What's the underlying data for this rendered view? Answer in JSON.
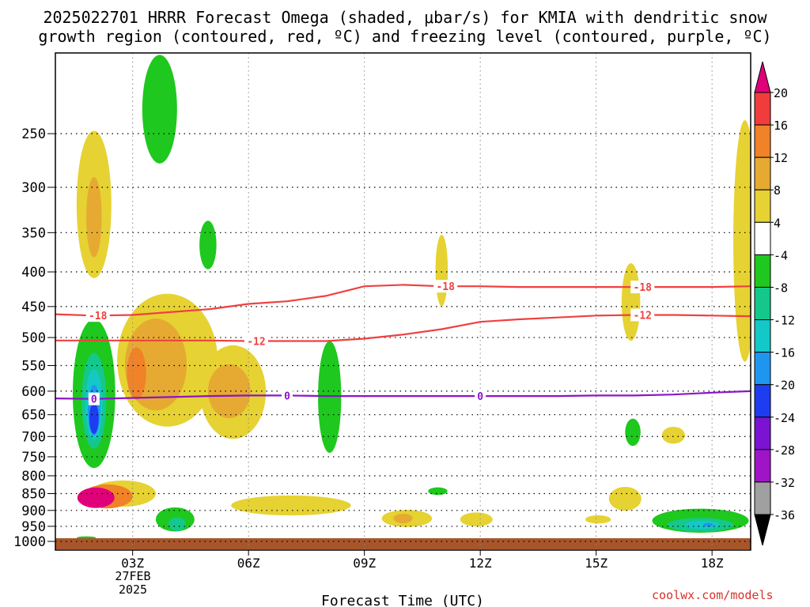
{
  "chart_data": {
    "type": "heatmap",
    "title_line1": "2025022701 HRRR Forecast Omega (shaded, μbar/s) for KMIA with dendritic snow",
    "title_line2": "growth region (contoured, red, ºC) and freezing level (contoured, purple, ºC)",
    "xlabel": "Forecast Time (UTC)",
    "x_ticks": [
      "03Z",
      "06Z",
      "09Z",
      "12Z",
      "15Z",
      "18Z"
    ],
    "x_tick_hours": [
      3,
      6,
      9,
      12,
      15,
      18
    ],
    "x_range_hours": [
      1,
      19
    ],
    "date_label_line1": "27FEB",
    "date_label_line2": "2025",
    "y_ticks": [
      250,
      300,
      350,
      400,
      450,
      500,
      550,
      600,
      650,
      700,
      750,
      800,
      850,
      900,
      950,
      1000
    ],
    "y_tick_labels": [
      "250",
      "300",
      "350",
      "400",
      "450",
      "500",
      "550",
      "600",
      "650",
      "700",
      "750",
      "800",
      "850",
      "900",
      "950",
      "1000"
    ],
    "y_range_hPa": [
      190,
      1030
    ],
    "ylabel": "",
    "grid": true,
    "colorbar": {
      "labels": [
        "20",
        "16",
        "12",
        "8",
        "4",
        "-4",
        "-8",
        "-12",
        "-16",
        "-20",
        "-24",
        "-28",
        "-32",
        "-36"
      ],
      "colors": [
        "#e0007a",
        "#f03c3c",
        "#f08228",
        "#e6aa32",
        "#e6d232",
        "#ffffff",
        "#1ec81e",
        "#14c88c",
        "#14c8c8",
        "#1e96f0",
        "#1e3cf0",
        "#7a14d2",
        "#a014c8",
        "#a0a0a0",
        "#000000"
      ]
    },
    "omega_regions": [
      {
        "h": 2.0,
        "p": 318,
        "dh": 0.45,
        "dp": 78,
        "color": "#e6d232"
      },
      {
        "h": 2.0,
        "p": 332,
        "dh": 0.2,
        "dp": 45,
        "color": "#e6aa32"
      },
      {
        "h": 3.9,
        "p": 540,
        "dh": 1.3,
        "dp": 120,
        "color": "#e6d232"
      },
      {
        "h": 3.6,
        "p": 548,
        "dh": 0.8,
        "dp": 85,
        "color": "#e6aa32"
      },
      {
        "h": 3.1,
        "p": 565,
        "dh": 0.25,
        "dp": 50,
        "color": "#f08228"
      },
      {
        "h": 5.6,
        "p": 602,
        "dh": 0.85,
        "dp": 95,
        "color": "#e6d232"
      },
      {
        "h": 5.5,
        "p": 600,
        "dh": 0.55,
        "dp": 55,
        "color": "#e6aa32"
      },
      {
        "h": 2.75,
        "p": 850,
        "dh": 0.85,
        "dp": 38,
        "color": "#e6d232"
      },
      {
        "h": 2.35,
        "p": 858,
        "dh": 0.65,
        "dp": 35,
        "color": "#f08228"
      },
      {
        "h": 2.05,
        "p": 862,
        "dh": 0.48,
        "dp": 30,
        "color": "#e0007a"
      },
      {
        "h": 7.1,
        "p": 885,
        "dh": 1.55,
        "dp": 30,
        "color": "#e6d232"
      },
      {
        "h": 10.1,
        "p": 925,
        "dh": 0.65,
        "dp": 27,
        "color": "#e6d232"
      },
      {
        "h": 10.0,
        "p": 925,
        "dh": 0.25,
        "dp": 15,
        "color": "#e6aa32"
      },
      {
        "h": 11.9,
        "p": 928,
        "dh": 0.42,
        "dp": 22,
        "color": "#e6d232"
      },
      {
        "h": 15.75,
        "p": 865,
        "dh": 0.42,
        "dp": 35,
        "color": "#e6d232"
      },
      {
        "h": 15.05,
        "p": 928,
        "dh": 0.33,
        "dp": 13,
        "color": "#e6d232"
      },
      {
        "h": 11.0,
        "p": 398,
        "dh": 0.16,
        "dp": 48,
        "color": "#e6d232"
      },
      {
        "h": 15.9,
        "p": 443,
        "dh": 0.24,
        "dp": 58,
        "color": "#e6d232"
      },
      {
        "h": 17.0,
        "p": 697,
        "dh": 0.3,
        "dp": 20,
        "color": "#e6d232"
      },
      {
        "h": 18.85,
        "p": 360,
        "dh": 0.3,
        "dp": 140,
        "color": "#e6d232"
      },
      {
        "h": 2.0,
        "p": 605,
        "dh": 0.55,
        "dp": 150,
        "color": "#1ec81e"
      },
      {
        "h": 2.0,
        "p": 620,
        "dh": 0.32,
        "dp": 100,
        "color": "#14c88c"
      },
      {
        "h": 2.0,
        "p": 628,
        "dh": 0.22,
        "dp": 75,
        "color": "#14c8c8"
      },
      {
        "h": 2.0,
        "p": 640,
        "dh": 0.16,
        "dp": 55,
        "color": "#1e96f0"
      },
      {
        "h": 2.0,
        "p": 658,
        "dh": 0.12,
        "dp": 35,
        "color": "#1e3cf0"
      },
      {
        "h": 3.7,
        "p": 230,
        "dh": 0.45,
        "dp": 42,
        "color": "#1ec81e"
      },
      {
        "h": 4.95,
        "p": 365,
        "dh": 0.22,
        "dp": 30,
        "color": "#1ec81e"
      },
      {
        "h": 8.1,
        "p": 612,
        "dh": 0.3,
        "dp": 115,
        "color": "#1ec81e"
      },
      {
        "h": 10.9,
        "p": 843,
        "dh": 0.25,
        "dp": 11,
        "color": "#1ec81e"
      },
      {
        "h": 4.1,
        "p": 928,
        "dh": 0.5,
        "dp": 38,
        "color": "#1ec81e"
      },
      {
        "h": 4.15,
        "p": 943,
        "dh": 0.22,
        "dp": 22,
        "color": "#14c88c"
      },
      {
        "h": 1.8,
        "p": 988,
        "dh": 0.25,
        "dp": 5,
        "color": "#1ec81e"
      },
      {
        "h": 15.95,
        "p": 690,
        "dh": 0.2,
        "dp": 32,
        "color": "#1ec81e"
      },
      {
        "h": 17.7,
        "p": 932,
        "dh": 1.25,
        "dp": 38,
        "color": "#1ec81e"
      },
      {
        "h": 17.7,
        "p": 945,
        "dh": 0.85,
        "dp": 22,
        "color": "#14c88c"
      },
      {
        "h": 17.75,
        "p": 945,
        "dh": 0.45,
        "dp": 13,
        "color": "#14c8c8"
      },
      {
        "h": 17.9,
        "p": 945,
        "dh": 0.12,
        "dp": 6,
        "color": "#1e96f0"
      }
    ],
    "contours": [
      {
        "label": "-18",
        "color": "#f04040",
        "points": [
          [
            1,
            462
          ],
          [
            2,
            464
          ],
          [
            3,
            463
          ],
          [
            5,
            454
          ],
          [
            6,
            446
          ],
          [
            7,
            442
          ],
          [
            8,
            434
          ],
          [
            9,
            420
          ],
          [
            10,
            418
          ],
          [
            11,
            420
          ],
          [
            12,
            420
          ],
          [
            13,
            421
          ],
          [
            14,
            421
          ],
          [
            15,
            421
          ],
          [
            16,
            421
          ],
          [
            17,
            421
          ],
          [
            18,
            421
          ],
          [
            19,
            420
          ]
        ],
        "label_hours": [
          2.1,
          11.1,
          16.2
        ]
      },
      {
        "label": "-12",
        "color": "#f04040",
        "points": [
          [
            1,
            505
          ],
          [
            2,
            505
          ],
          [
            3,
            505
          ],
          [
            4,
            505
          ],
          [
            5,
            505
          ],
          [
            6,
            506
          ],
          [
            7,
            506
          ],
          [
            8,
            506
          ],
          [
            9,
            502
          ],
          [
            10,
            495
          ],
          [
            11,
            486
          ],
          [
            12,
            474
          ],
          [
            13,
            470
          ],
          [
            14,
            467
          ],
          [
            15,
            464
          ],
          [
            16,
            463
          ],
          [
            17,
            463
          ],
          [
            18,
            464
          ],
          [
            19,
            465
          ]
        ],
        "label_hours": [
          6.2,
          16.2
        ]
      },
      {
        "label": "0",
        "color": "#8c14c8",
        "points": [
          [
            1,
            615
          ],
          [
            2,
            616
          ],
          [
            3,
            614
          ],
          [
            5,
            610
          ],
          [
            6,
            609
          ],
          [
            7,
            609
          ],
          [
            8,
            610
          ],
          [
            9,
            610
          ],
          [
            10,
            610
          ],
          [
            11,
            610
          ],
          [
            12,
            610
          ],
          [
            13,
            610
          ],
          [
            14,
            610
          ],
          [
            15,
            609
          ],
          [
            16,
            609
          ],
          [
            17,
            607
          ],
          [
            18,
            603
          ],
          [
            19,
            600
          ]
        ],
        "label_hours": [
          2.0,
          7.0,
          12.0
        ]
      }
    ]
  },
  "watermark": "coolwx.com/models"
}
